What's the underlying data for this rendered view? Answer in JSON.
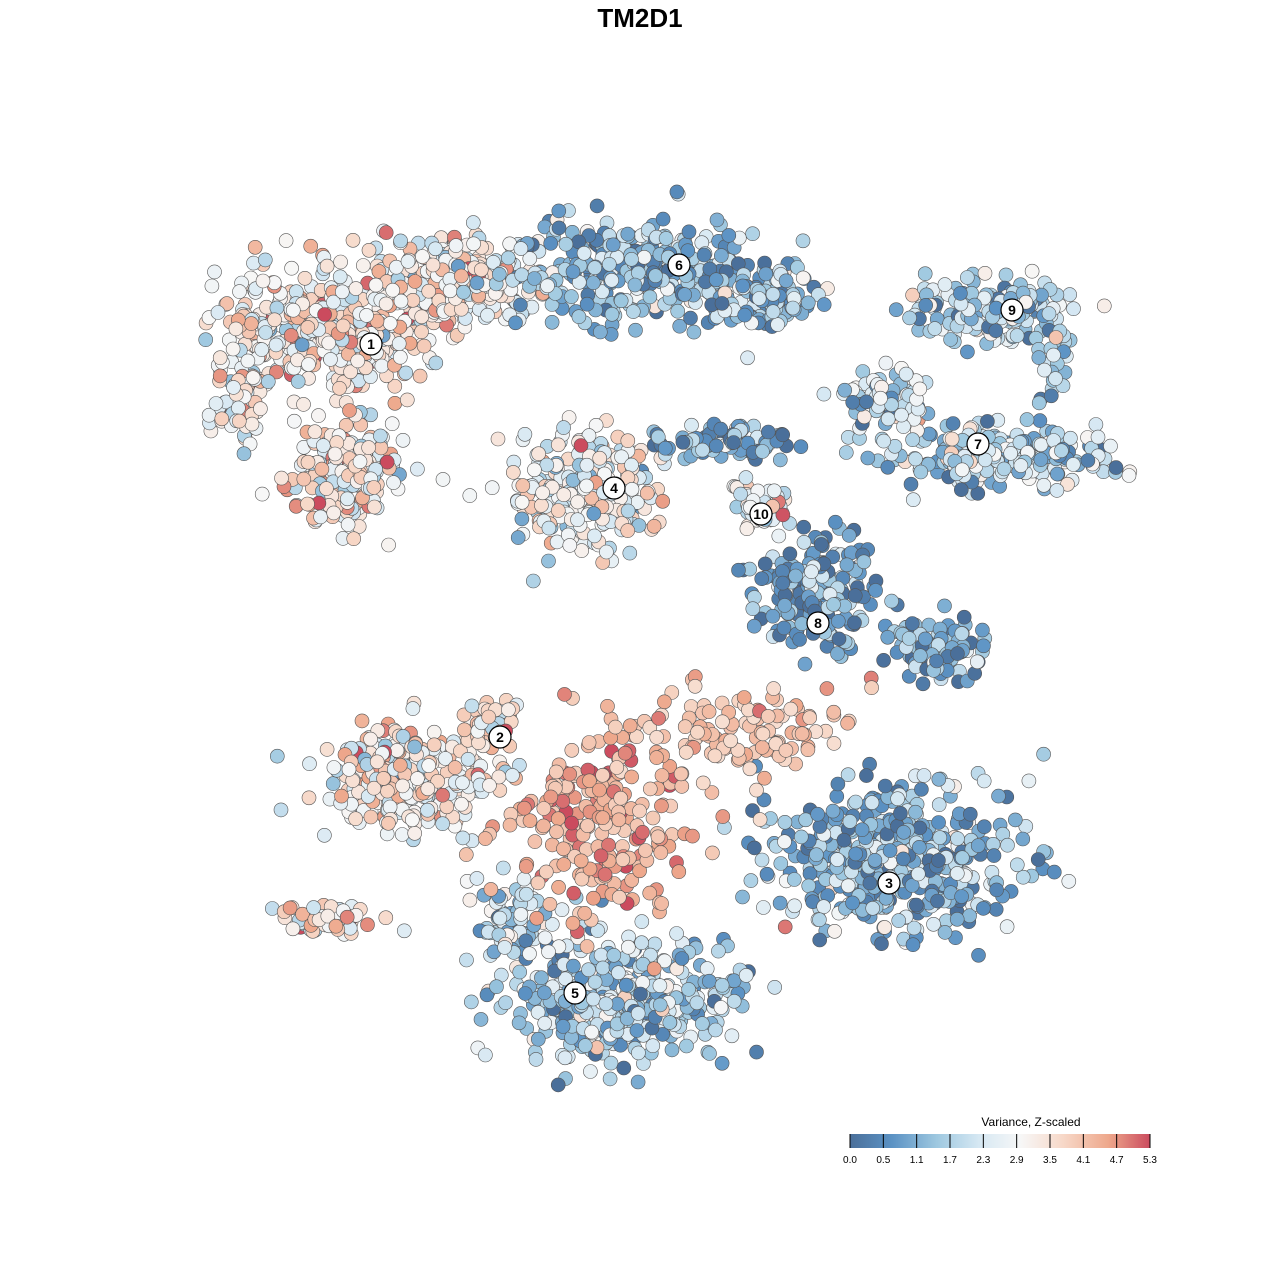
{
  "chart_data": {
    "type": "scatter",
    "title": "TM2D1",
    "xlabel": "",
    "ylabel": "",
    "grid": false,
    "axes_visible": false,
    "legend": {
      "title": "Variance, Z-scaled",
      "placement": "bottom-right",
      "ticks": [
        "0.0",
        "0.5",
        "1.1",
        "1.7",
        "2.3",
        "2.9",
        "3.5",
        "4.1",
        "4.7",
        "5.3"
      ],
      "range": [
        0.0,
        5.3
      ]
    },
    "colorscale": [
      "#4a6f9a",
      "#5b92c4",
      "#9ec8e0",
      "#d6e8f3",
      "#f7f7f7",
      "#f7d8c8",
      "#eea88c",
      "#cb4b5e"
    ],
    "point_stroke": "#555555",
    "clusters": [
      {
        "label": "1",
        "mean": 2.9
      },
      {
        "label": "2",
        "mean": 3.1
      },
      {
        "label": "3",
        "mean": 1.5
      },
      {
        "label": "4",
        "mean": 2.8
      },
      {
        "label": "5",
        "mean": 1.9
      },
      {
        "label": "6",
        "mean": 1.6
      },
      {
        "label": "7",
        "mean": 1.9
      },
      {
        "label": "8",
        "mean": 1.3
      },
      {
        "label": "9",
        "mean": 1.7
      },
      {
        "label": "10",
        "mean": 2.9
      }
    ]
  }
}
